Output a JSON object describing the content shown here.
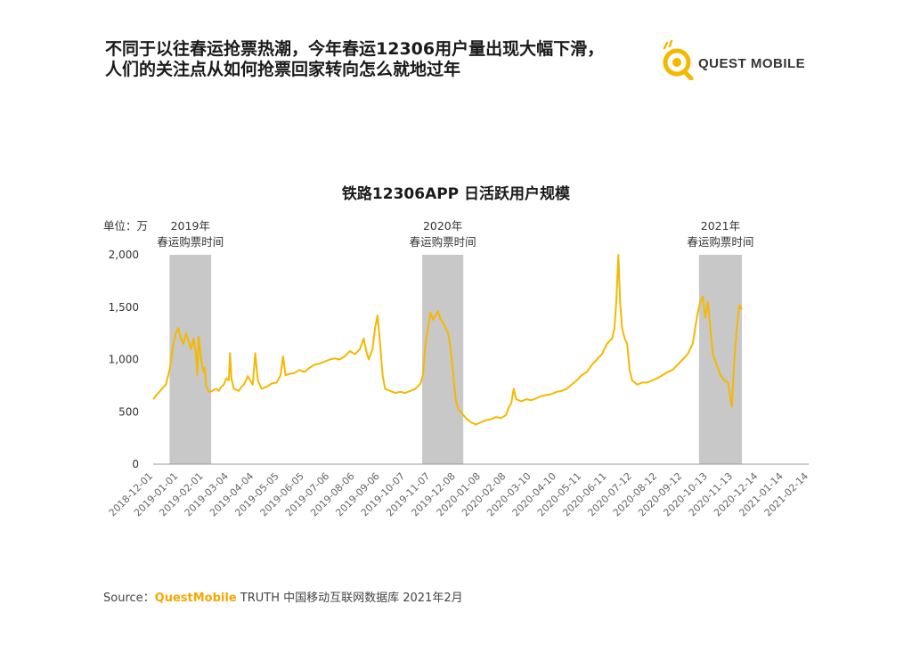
{
  "headline": {
    "line1": "不同于以往春运抢票热潮，今年春运12306用户量出现大幅下滑，",
    "line2": "人们的关注点从如何抢票回家转向怎么就地过年"
  },
  "logo": {
    "text": "QUEST MOBILE",
    "icon": "quest-mobile-logo-icon",
    "accent": "#f5b800"
  },
  "source": {
    "prefix": "Source：",
    "brand": "QuestMobile",
    "rest": " TRUTH 中国移动互联网数据库 2021年2月"
  },
  "chart_data": {
    "type": "line",
    "title": "铁路12306APP 日活跃用户规模",
    "unit_label": "单位：万",
    "ylim": [
      0,
      2000
    ],
    "y_ticks": [
      "0",
      "500",
      "1,000",
      "1,500",
      "2,000"
    ],
    "y_tick_values": [
      0,
      500,
      1000,
      1500,
      2000
    ],
    "x_tick_labels": [
      "2018-12-01",
      "2019-01-01",
      "2019-02-01",
      "2019-03-04",
      "2019-04-04",
      "2019-05-05",
      "2019-06-05",
      "2019-07-06",
      "2019-08-06",
      "2019-09-06",
      "2019-10-07",
      "2019-11-07",
      "2019-12-08",
      "2020-01-08",
      "2020-02-08",
      "2020-03-10",
      "2020-04-10",
      "2020-05-11",
      "2020-06-11",
      "2020-07-12",
      "2020-08-12",
      "2020-09-12",
      "2020-10-13",
      "2020-11-13",
      "2020-12-14",
      "2021-01-14",
      "2021-02-14"
    ],
    "grid": false,
    "line_color": "#f5b800",
    "band_color": "#c8c8c8",
    "series": [
      {
        "values": [
          [
            0,
            620
          ],
          [
            0.2,
            680
          ],
          [
            0.35,
            720
          ],
          [
            0.5,
            760
          ],
          [
            0.65,
            900
          ],
          [
            0.8,
            1150
          ],
          [
            0.9,
            1250
          ],
          [
            1.0,
            1300
          ],
          [
            1.1,
            1200
          ],
          [
            1.2,
            1150
          ],
          [
            1.3,
            1250
          ],
          [
            1.4,
            1180
          ],
          [
            1.5,
            1100
          ],
          [
            1.6,
            1200
          ],
          [
            1.7,
            1050
          ],
          [
            1.75,
            850
          ],
          [
            1.8,
            1220
          ],
          [
            1.9,
            1000
          ],
          [
            2.0,
            880
          ],
          [
            2.05,
            920
          ],
          [
            2.1,
            750
          ],
          [
            2.2,
            690
          ],
          [
            2.35,
            700
          ],
          [
            2.5,
            720
          ],
          [
            2.6,
            700
          ],
          [
            2.7,
            740
          ],
          [
            2.8,
            760
          ],
          [
            2.9,
            820
          ],
          [
            3.0,
            800
          ],
          [
            3.05,
            1060
          ],
          [
            3.1,
            820
          ],
          [
            3.2,
            720
          ],
          [
            3.4,
            700
          ],
          [
            3.5,
            740
          ],
          [
            3.6,
            760
          ],
          [
            3.75,
            840
          ],
          [
            3.85,
            800
          ],
          [
            3.95,
            760
          ],
          [
            4.05,
            1060
          ],
          [
            4.15,
            800
          ],
          [
            4.3,
            720
          ],
          [
            4.5,
            740
          ],
          [
            4.7,
            770
          ],
          [
            4.9,
            780
          ],
          [
            5.05,
            850
          ],
          [
            5.15,
            1030
          ],
          [
            5.25,
            850
          ],
          [
            5.4,
            860
          ],
          [
            5.6,
            870
          ],
          [
            5.8,
            900
          ],
          [
            6.0,
            880
          ],
          [
            6.2,
            920
          ],
          [
            6.4,
            950
          ],
          [
            6.6,
            960
          ],
          [
            6.8,
            980
          ],
          [
            7.0,
            1000
          ],
          [
            7.2,
            1010
          ],
          [
            7.4,
            1000
          ],
          [
            7.6,
            1030
          ],
          [
            7.8,
            1080
          ],
          [
            8.0,
            1050
          ],
          [
            8.2,
            1100
          ],
          [
            8.35,
            1200
          ],
          [
            8.45,
            1080
          ],
          [
            8.55,
            1000
          ],
          [
            8.7,
            1100
          ],
          [
            8.8,
            1300
          ],
          [
            8.9,
            1420
          ],
          [
            9.0,
            1150
          ],
          [
            9.1,
            850
          ],
          [
            9.2,
            720
          ],
          [
            9.4,
            700
          ],
          [
            9.6,
            680
          ],
          [
            9.8,
            690
          ],
          [
            10.0,
            680
          ],
          [
            10.2,
            700
          ],
          [
            10.4,
            720
          ],
          [
            10.6,
            770
          ],
          [
            10.7,
            850
          ],
          [
            10.8,
            1150
          ],
          [
            10.9,
            1300
          ],
          [
            11.0,
            1450
          ],
          [
            11.1,
            1380
          ],
          [
            11.2,
            1420
          ],
          [
            11.3,
            1460
          ],
          [
            11.4,
            1380
          ],
          [
            11.5,
            1350
          ],
          [
            11.6,
            1300
          ],
          [
            11.7,
            1250
          ],
          [
            11.8,
            1100
          ],
          [
            11.9,
            850
          ],
          [
            12.0,
            620
          ],
          [
            12.1,
            520
          ],
          [
            12.2,
            500
          ],
          [
            12.3,
            470
          ],
          [
            12.4,
            440
          ],
          [
            12.5,
            420
          ],
          [
            12.6,
            400
          ],
          [
            12.8,
            380
          ],
          [
            13.0,
            400
          ],
          [
            13.2,
            420
          ],
          [
            13.4,
            430
          ],
          [
            13.6,
            450
          ],
          [
            13.8,
            440
          ],
          [
            14.0,
            470
          ],
          [
            14.1,
            540
          ],
          [
            14.2,
            580
          ],
          [
            14.3,
            720
          ],
          [
            14.4,
            620
          ],
          [
            14.6,
            600
          ],
          [
            14.8,
            620
          ],
          [
            15.0,
            610
          ],
          [
            15.2,
            630
          ],
          [
            15.4,
            650
          ],
          [
            15.6,
            660
          ],
          [
            15.8,
            670
          ],
          [
            16.0,
            690
          ],
          [
            16.2,
            700
          ],
          [
            16.4,
            720
          ],
          [
            16.6,
            760
          ],
          [
            16.8,
            800
          ],
          [
            17.0,
            850
          ],
          [
            17.2,
            880
          ],
          [
            17.4,
            950
          ],
          [
            17.6,
            1000
          ],
          [
            17.8,
            1050
          ],
          [
            18.0,
            1150
          ],
          [
            18.2,
            1200
          ],
          [
            18.3,
            1300
          ],
          [
            18.38,
            1600
          ],
          [
            18.45,
            2000
          ],
          [
            18.52,
            1550
          ],
          [
            18.6,
            1300
          ],
          [
            18.7,
            1200
          ],
          [
            18.8,
            1150
          ],
          [
            18.9,
            900
          ],
          [
            19.0,
            800
          ],
          [
            19.2,
            760
          ],
          [
            19.4,
            780
          ],
          [
            19.6,
            780
          ],
          [
            19.8,
            800
          ],
          [
            20.0,
            820
          ],
          [
            20.2,
            850
          ],
          [
            20.4,
            880
          ],
          [
            20.6,
            900
          ],
          [
            20.8,
            950
          ],
          [
            21.0,
            1000
          ],
          [
            21.2,
            1050
          ],
          [
            21.4,
            1150
          ],
          [
            21.5,
            1300
          ],
          [
            21.6,
            1450
          ],
          [
            21.7,
            1550
          ],
          [
            21.8,
            1600
          ],
          [
            21.9,
            1400
          ],
          [
            22.0,
            1550
          ],
          [
            22.1,
            1300
          ],
          [
            22.2,
            1050
          ],
          [
            22.35,
            950
          ],
          [
            22.5,
            850
          ],
          [
            22.65,
            800
          ],
          [
            22.8,
            780
          ],
          [
            22.95,
            550
          ],
          [
            23.05,
            1000
          ],
          [
            23.15,
            1300
          ],
          [
            23.25,
            1520
          ],
          [
            23.35,
            1480
          ]
        ]
      }
    ],
    "bands": [
      {
        "x0": 0.65,
        "x1": 2.3,
        "label_year": "2019年",
        "label_text": "春运购票时间"
      },
      {
        "x0": 10.67,
        "x1": 12.3,
        "label_year": "2020年",
        "label_text": "春运购票时间"
      },
      {
        "x0": 21.65,
        "x1": 23.35,
        "label_year": "2021年",
        "label_text": "春运购票时间"
      }
    ]
  }
}
